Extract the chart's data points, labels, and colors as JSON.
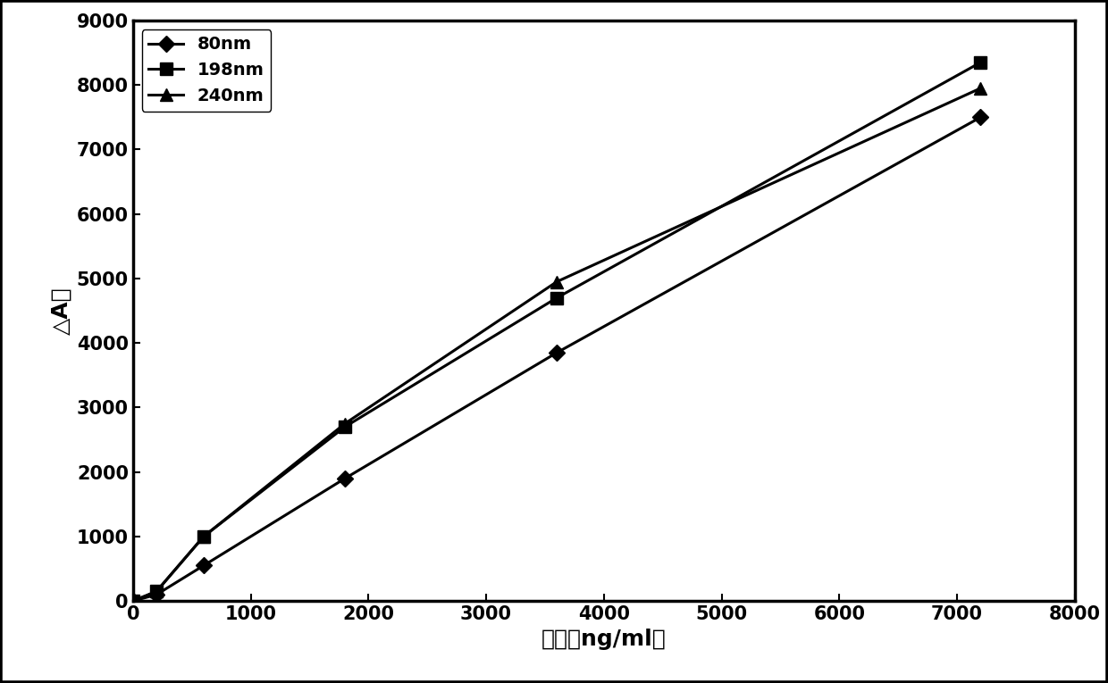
{
  "series": [
    {
      "label": "80nm",
      "x": [
        0,
        200,
        600,
        1800,
        3600,
        7200
      ],
      "y": [
        0,
        100,
        550,
        1900,
        3850,
        7500
      ],
      "marker": "D",
      "color": "#000000",
      "linewidth": 2.2,
      "markersize": 9
    },
    {
      "label": "198nm",
      "x": [
        0,
        200,
        600,
        1800,
        3600,
        7200
      ],
      "y": [
        0,
        150,
        1000,
        2700,
        4700,
        8350
      ],
      "marker": "s",
      "color": "#000000",
      "linewidth": 2.2,
      "markersize": 10
    },
    {
      "label": "240nm",
      "x": [
        0,
        200,
        600,
        1800,
        3600,
        7200
      ],
      "y": [
        0,
        150,
        1000,
        2750,
        4950,
        7950
      ],
      "marker": "^",
      "color": "#000000",
      "linewidth": 2.2,
      "markersize": 10
    }
  ],
  "xlabel": "浓度（ng/ml）",
  "ylabel": "△A值",
  "xlim": [
    0,
    8000
  ],
  "ylim": [
    0,
    9000
  ],
  "xticks": [
    0,
    1000,
    2000,
    3000,
    4000,
    5000,
    6000,
    7000,
    8000
  ],
  "yticks": [
    0,
    1000,
    2000,
    3000,
    4000,
    5000,
    6000,
    7000,
    8000,
    9000
  ],
  "legend_fontsize": 14,
  "axis_label_fontsize": 18,
  "tick_fontsize": 15,
  "plot_bg": "#ffffff",
  "figure_bg": "#ffffff",
  "border_color": "#000000",
  "outer_border": "#000000"
}
